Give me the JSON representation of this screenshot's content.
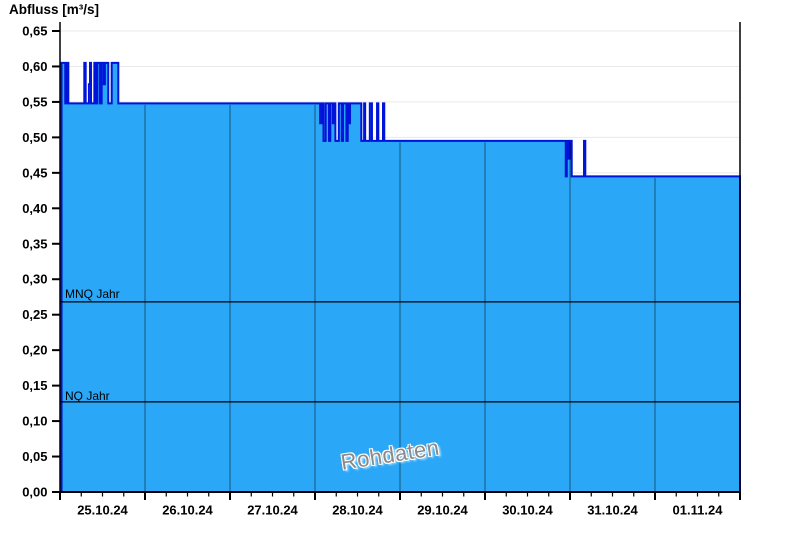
{
  "chart": {
    "title": "Abfluss [m³/s]",
    "watermark": "Rohdaten",
    "y_axis": {
      "min": 0,
      "max": 0.65,
      "step": 0.05,
      "labels": [
        "0,00",
        "0,05",
        "0,10",
        "0,15",
        "0,20",
        "0,25",
        "0,30",
        "0,35",
        "0,40",
        "0,45",
        "0,50",
        "0,55",
        "0,60",
        "0,65"
      ]
    },
    "x_axis": {
      "labels": [
        "25.10.24",
        "26.10.24",
        "27.10.24",
        "28.10.24",
        "29.10.24",
        "30.10.24",
        "31.10.24",
        "01.11.24"
      ],
      "days_total": 8,
      "minor_ticks_per_day": 3
    },
    "reference_lines": [
      {
        "label": "MNQ Jahr",
        "value": 0.268
      },
      {
        "label": "NQ Jahr",
        "value": 0.127
      }
    ],
    "colors": {
      "area_fill": "#2aa8f7",
      "series_stroke": "#0013d9",
      "h_grid": "#e9e9e9",
      "axis": "#000000",
      "day_grid": "#000000",
      "reference_line": "#000000",
      "watermark_text": "#8a8a8a"
    }
  },
  "chart_data": {
    "type": "area",
    "title": "Abfluss [m³/s]",
    "series_name": "Rohdaten",
    "unit": "m³/s",
    "ylim": [
      0,
      0.65
    ],
    "x_unit": "days since 25.10.24 00:00",
    "xlim": [
      0,
      8
    ],
    "grid": "horizontal light, vertical per day",
    "legend": "none",
    "series": [
      {
        "name": "Rohdaten",
        "step_points": [
          [
            0.018,
            0.605
          ],
          [
            0.062,
            0.548
          ],
          [
            0.082,
            0.605
          ],
          [
            0.098,
            0.548
          ],
          [
            0.286,
            0.605
          ],
          [
            0.302,
            0.548
          ],
          [
            0.34,
            0.575
          ],
          [
            0.353,
            0.605
          ],
          [
            0.365,
            0.548
          ],
          [
            0.404,
            0.605
          ],
          [
            0.424,
            0.548
          ],
          [
            0.439,
            0.605
          ],
          [
            0.47,
            0.548
          ],
          [
            0.49,
            0.605
          ],
          [
            0.515,
            0.575
          ],
          [
            0.528,
            0.605
          ],
          [
            0.568,
            0.548
          ],
          [
            0.608,
            0.605
          ],
          [
            0.686,
            0.548
          ],
          [
            3.06,
            0.52
          ],
          [
            3.08,
            0.548
          ],
          [
            3.1,
            0.495
          ],
          [
            3.125,
            0.548
          ],
          [
            3.165,
            0.495
          ],
          [
            3.18,
            0.548
          ],
          [
            3.21,
            0.52
          ],
          [
            3.225,
            0.548
          ],
          [
            3.24,
            0.495
          ],
          [
            3.28,
            0.548
          ],
          [
            3.315,
            0.495
          ],
          [
            3.33,
            0.548
          ],
          [
            3.37,
            0.495
          ],
          [
            3.385,
            0.548
          ],
          [
            3.4,
            0.52
          ],
          [
            3.412,
            0.548
          ],
          [
            3.545,
            0.495
          ],
          [
            3.578,
            0.548
          ],
          [
            3.59,
            0.495
          ],
          [
            3.645,
            0.548
          ],
          [
            3.67,
            0.495
          ],
          [
            3.73,
            0.548
          ],
          [
            3.745,
            0.495
          ],
          [
            3.8,
            0.548
          ],
          [
            3.815,
            0.495
          ],
          [
            5.95,
            0.445
          ],
          [
            5.962,
            0.495
          ],
          [
            5.985,
            0.47
          ],
          [
            6.0,
            0.495
          ],
          [
            6.02,
            0.445
          ],
          [
            6.165,
            0.495
          ],
          [
            6.18,
            0.445
          ],
          [
            8.0,
            0.445
          ]
        ]
      }
    ]
  }
}
